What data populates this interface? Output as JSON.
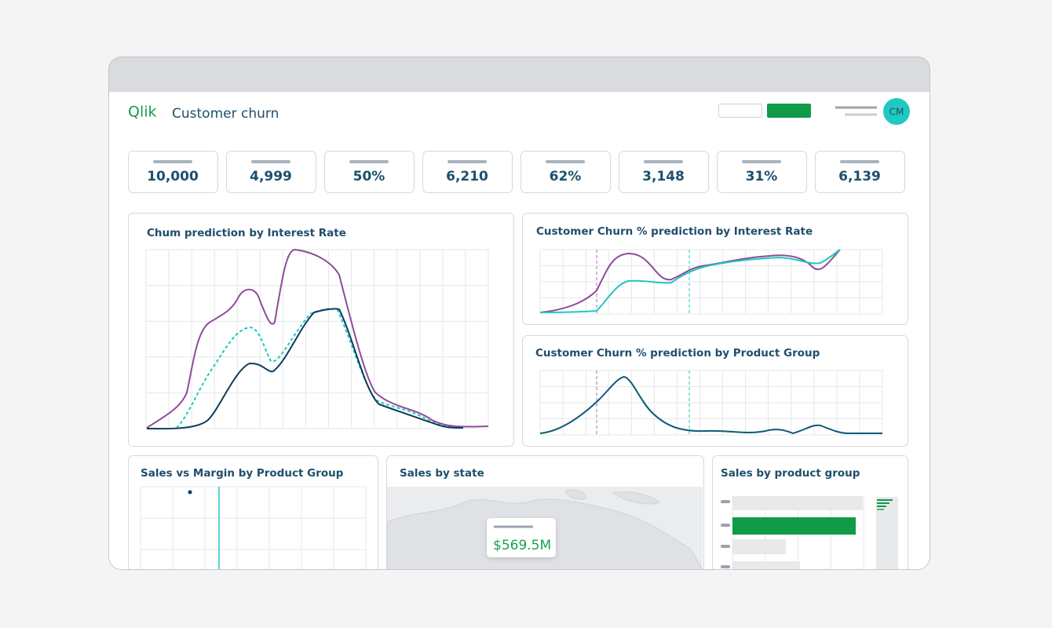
{
  "header": {
    "logo": "Qlik",
    "title": "Customer churn",
    "avatar": "CM"
  },
  "kpis": [
    "10,000",
    "4,999",
    "50%",
    "6,210",
    "62%",
    "3,148",
    "31%",
    "6,139"
  ],
  "panels": [
    "Chum prediction by Interest Rate",
    "Customer Churn % prediction by Interest Rate",
    "Customer Churn % prediction by Product Group",
    "Sales vs Margin by Product Group",
    "Sales by state",
    "Sales by product group"
  ],
  "tooltip": {
    "value": "$569.5M"
  }
}
